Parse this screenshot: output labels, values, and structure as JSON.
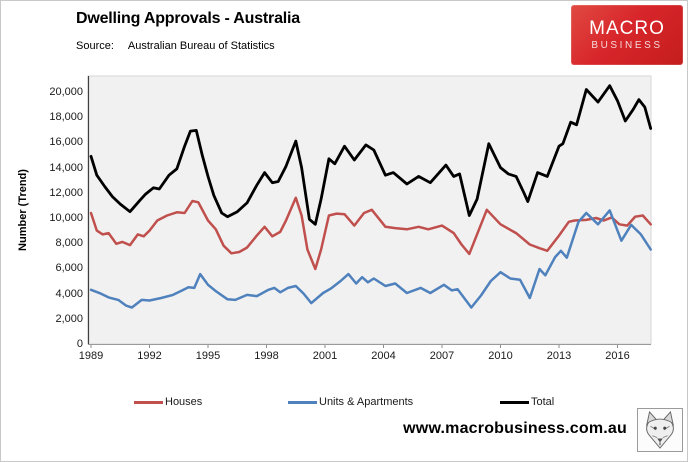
{
  "header": {
    "title": "Dwelling Approvals - Australia",
    "source_label": "Source:",
    "source_value": "Australian Bureau of Statistics"
  },
  "logo": {
    "line1": "MACRO",
    "line2": "BUSINESS",
    "bg_color": "#D8262B",
    "text_color": "#FFFFFF"
  },
  "footer": {
    "website": "www.macrobusiness.com.au",
    "logo_icon": "wolf-sketch-icon"
  },
  "chart_data": {
    "type": "line",
    "title": "Dwelling Approvals - Australia",
    "xlabel": "",
    "ylabel": "Number (Trend)",
    "xlim": [
      1988.85,
      2017.75
    ],
    "ylim": [
      0,
      20000
    ],
    "grid": false,
    "plot_bg": "#F1F1F1",
    "legend_position": "bottom",
    "x_ticks": [
      "1989",
      "1992",
      "1995",
      "1998",
      "2001",
      "2004",
      "2007",
      "2010",
      "2013",
      "2016"
    ],
    "y_ticks": [
      "0",
      "2,000",
      "4,000",
      "6,000",
      "8,000",
      "10,000",
      "12,000",
      "14,000",
      "16,000",
      "18,000",
      "20,000"
    ],
    "series": [
      {
        "name": "Houses",
        "color": "#C0504D",
        "width": 2.5,
        "points": [
          [
            1989.0,
            10400
          ],
          [
            1989.3,
            9000
          ],
          [
            1989.6,
            8700
          ],
          [
            1989.9,
            8800
          ],
          [
            1990.3,
            7950
          ],
          [
            1990.6,
            8100
          ],
          [
            1991.0,
            7850
          ],
          [
            1991.4,
            8700
          ],
          [
            1991.7,
            8550
          ],
          [
            1992.0,
            9000
          ],
          [
            1992.4,
            9800
          ],
          [
            1992.9,
            10200
          ],
          [
            1993.4,
            10450
          ],
          [
            1993.8,
            10400
          ],
          [
            1994.2,
            11350
          ],
          [
            1994.5,
            11250
          ],
          [
            1995.0,
            9800
          ],
          [
            1995.4,
            9100
          ],
          [
            1995.8,
            7800
          ],
          [
            1996.2,
            7200
          ],
          [
            1996.6,
            7300
          ],
          [
            1997.0,
            7650
          ],
          [
            1997.5,
            8600
          ],
          [
            1997.9,
            9300
          ],
          [
            1998.3,
            8550
          ],
          [
            1998.7,
            8900
          ],
          [
            1999.0,
            9800
          ],
          [
            1999.5,
            11600
          ],
          [
            1999.8,
            10200
          ],
          [
            2000.1,
            7500
          ],
          [
            2000.5,
            5950
          ],
          [
            2000.8,
            7500
          ],
          [
            2001.2,
            10200
          ],
          [
            2001.6,
            10350
          ],
          [
            2002.0,
            10300
          ],
          [
            2002.5,
            9400
          ],
          [
            2003.0,
            10400
          ],
          [
            2003.4,
            10650
          ],
          [
            2004.1,
            9300
          ],
          [
            2004.6,
            9200
          ],
          [
            2005.2,
            9100
          ],
          [
            2005.8,
            9300
          ],
          [
            2006.3,
            9100
          ],
          [
            2007.0,
            9400
          ],
          [
            2007.6,
            8800
          ],
          [
            2008.0,
            7900
          ],
          [
            2008.4,
            7150
          ],
          [
            2009.3,
            10650
          ],
          [
            2010.0,
            9500
          ],
          [
            2010.8,
            8800
          ],
          [
            2011.5,
            7900
          ],
          [
            2012.0,
            7600
          ],
          [
            2012.4,
            7400
          ],
          [
            2013.0,
            8600
          ],
          [
            2013.5,
            9700
          ],
          [
            2013.8,
            9800
          ],
          [
            2014.4,
            9850
          ],
          [
            2014.9,
            10000
          ],
          [
            2015.3,
            9800
          ],
          [
            2015.7,
            10050
          ],
          [
            2016.1,
            9500
          ],
          [
            2016.5,
            9400
          ],
          [
            2016.9,
            10100
          ],
          [
            2017.3,
            10200
          ],
          [
            2017.7,
            9500
          ]
        ]
      },
      {
        "name": "Units & Apartments",
        "color": "#4F81BD",
        "width": 2.5,
        "points": [
          [
            1989.0,
            4300
          ],
          [
            1989.5,
            4000
          ],
          [
            1989.9,
            3700
          ],
          [
            1990.4,
            3500
          ],
          [
            1990.8,
            3050
          ],
          [
            1991.1,
            2900
          ],
          [
            1991.6,
            3500
          ],
          [
            1992.0,
            3450
          ],
          [
            1992.6,
            3650
          ],
          [
            1993.2,
            3900
          ],
          [
            1993.6,
            4200
          ],
          [
            1994.0,
            4500
          ],
          [
            1994.3,
            4450
          ],
          [
            1994.6,
            5550
          ],
          [
            1995.0,
            4700
          ],
          [
            1995.4,
            4200
          ],
          [
            1996.0,
            3550
          ],
          [
            1996.4,
            3500
          ],
          [
            1997.0,
            3900
          ],
          [
            1997.5,
            3800
          ],
          [
            1998.1,
            4300
          ],
          [
            1998.4,
            4450
          ],
          [
            1998.7,
            4100
          ],
          [
            1999.1,
            4450
          ],
          [
            1999.5,
            4600
          ],
          [
            1999.9,
            4000
          ],
          [
            2000.3,
            3250
          ],
          [
            2000.9,
            4050
          ],
          [
            2001.3,
            4400
          ],
          [
            2001.8,
            5000
          ],
          [
            2002.2,
            5550
          ],
          [
            2002.6,
            4800
          ],
          [
            2002.9,
            5300
          ],
          [
            2003.2,
            4900
          ],
          [
            2003.5,
            5200
          ],
          [
            2004.1,
            4600
          ],
          [
            2004.6,
            4800
          ],
          [
            2005.2,
            4050
          ],
          [
            2005.9,
            4450
          ],
          [
            2006.4,
            4050
          ],
          [
            2007.1,
            4700
          ],
          [
            2007.5,
            4250
          ],
          [
            2007.8,
            4350
          ],
          [
            2008.5,
            2900
          ],
          [
            2009.0,
            3850
          ],
          [
            2009.5,
            5000
          ],
          [
            2010.0,
            5700
          ],
          [
            2010.5,
            5200
          ],
          [
            2011.0,
            5100
          ],
          [
            2011.5,
            3650
          ],
          [
            2012.0,
            5950
          ],
          [
            2012.3,
            5450
          ],
          [
            2012.8,
            6900
          ],
          [
            2013.1,
            7400
          ],
          [
            2013.4,
            6850
          ],
          [
            2014.0,
            9700
          ],
          [
            2014.4,
            10400
          ],
          [
            2015.0,
            9500
          ],
          [
            2015.6,
            10600
          ],
          [
            2016.2,
            8200
          ],
          [
            2016.7,
            9450
          ],
          [
            2017.2,
            8700
          ],
          [
            2017.7,
            7500
          ]
        ]
      },
      {
        "name": "Total",
        "color": "#000000",
        "width": 2.8,
        "points": [
          [
            1989.0,
            14900
          ],
          [
            1989.3,
            13400
          ],
          [
            1989.7,
            12500
          ],
          [
            1990.1,
            11700
          ],
          [
            1990.5,
            11100
          ],
          [
            1991.0,
            10500
          ],
          [
            1991.5,
            11400
          ],
          [
            1991.8,
            11900
          ],
          [
            1992.2,
            12400
          ],
          [
            1992.5,
            12300
          ],
          [
            1993.0,
            13400
          ],
          [
            1993.4,
            13900
          ],
          [
            1993.8,
            15700
          ],
          [
            1994.1,
            16900
          ],
          [
            1994.4,
            16950
          ],
          [
            1994.7,
            15000
          ],
          [
            1995.0,
            13300
          ],
          [
            1995.3,
            11800
          ],
          [
            1995.7,
            10400
          ],
          [
            1996.0,
            10100
          ],
          [
            1996.5,
            10500
          ],
          [
            1997.0,
            11200
          ],
          [
            1997.5,
            12600
          ],
          [
            1997.9,
            13600
          ],
          [
            1998.3,
            12800
          ],
          [
            1998.6,
            12900
          ],
          [
            1999.0,
            14100
          ],
          [
            1999.5,
            16100
          ],
          [
            1999.8,
            14000
          ],
          [
            2000.2,
            9900
          ],
          [
            2000.5,
            9500
          ],
          [
            2000.8,
            11500
          ],
          [
            2001.2,
            14700
          ],
          [
            2001.5,
            14300
          ],
          [
            2002.0,
            15700
          ],
          [
            2002.5,
            14600
          ],
          [
            2003.1,
            15800
          ],
          [
            2003.5,
            15400
          ],
          [
            2004.1,
            13400
          ],
          [
            2004.5,
            13600
          ],
          [
            2005.2,
            12700
          ],
          [
            2005.8,
            13300
          ],
          [
            2006.4,
            12800
          ],
          [
            2007.2,
            14200
          ],
          [
            2007.6,
            13300
          ],
          [
            2007.9,
            13500
          ],
          [
            2008.4,
            10200
          ],
          [
            2008.8,
            11500
          ],
          [
            2009.4,
            15900
          ],
          [
            2010.0,
            14000
          ],
          [
            2010.4,
            13500
          ],
          [
            2010.8,
            13300
          ],
          [
            2011.2,
            12000
          ],
          [
            2011.4,
            11300
          ],
          [
            2011.9,
            13600
          ],
          [
            2012.4,
            13300
          ],
          [
            2013.0,
            15700
          ],
          [
            2013.2,
            15900
          ],
          [
            2013.6,
            17600
          ],
          [
            2013.9,
            17400
          ],
          [
            2014.4,
            20200
          ],
          [
            2015.0,
            19200
          ],
          [
            2015.6,
            20500
          ],
          [
            2016.0,
            19300
          ],
          [
            2016.4,
            17700
          ],
          [
            2016.8,
            18600
          ],
          [
            2017.1,
            19400
          ],
          [
            2017.4,
            18800
          ],
          [
            2017.7,
            17100
          ]
        ]
      }
    ]
  }
}
